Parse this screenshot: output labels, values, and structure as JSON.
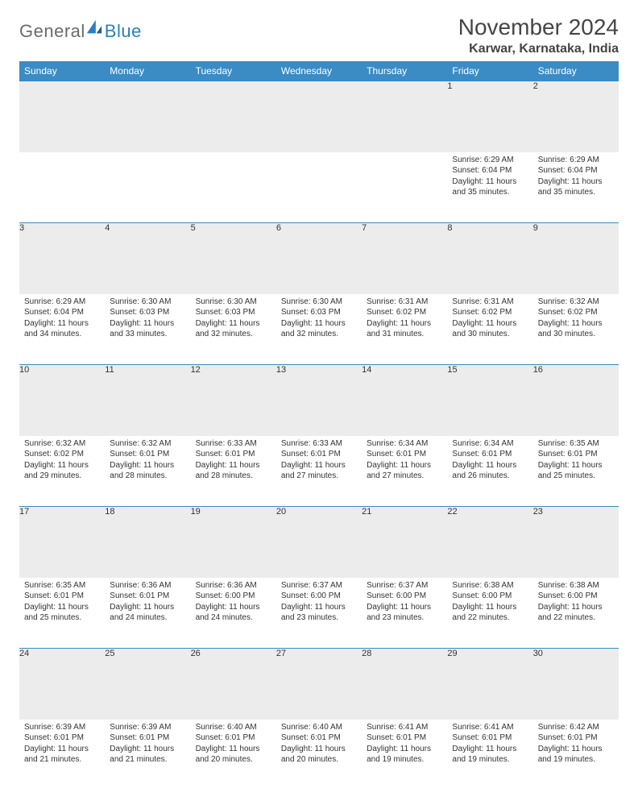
{
  "logo": {
    "general": "General",
    "blue": "Blue"
  },
  "title": "November 2024",
  "location": "Karwar, Karnataka, India",
  "colors": {
    "header_bg": "#3b8bc4",
    "header_fg": "#ffffff",
    "daynum_bg": "#ececec",
    "border": "#3b8bc4",
    "text": "#333333",
    "logo_gray": "#6b6b6b",
    "logo_blue": "#2a7fbf"
  },
  "weekdays": [
    "Sunday",
    "Monday",
    "Tuesday",
    "Wednesday",
    "Thursday",
    "Friday",
    "Saturday"
  ],
  "weeks": [
    [
      null,
      null,
      null,
      null,
      null,
      {
        "d": "1",
        "sr": "Sunrise: 6:29 AM",
        "ss": "Sunset: 6:04 PM",
        "dl1": "Daylight: 11 hours",
        "dl2": "and 35 minutes."
      },
      {
        "d": "2",
        "sr": "Sunrise: 6:29 AM",
        "ss": "Sunset: 6:04 PM",
        "dl1": "Daylight: 11 hours",
        "dl2": "and 35 minutes."
      }
    ],
    [
      {
        "d": "3",
        "sr": "Sunrise: 6:29 AM",
        "ss": "Sunset: 6:04 PM",
        "dl1": "Daylight: 11 hours",
        "dl2": "and 34 minutes."
      },
      {
        "d": "4",
        "sr": "Sunrise: 6:30 AM",
        "ss": "Sunset: 6:03 PM",
        "dl1": "Daylight: 11 hours",
        "dl2": "and 33 minutes."
      },
      {
        "d": "5",
        "sr": "Sunrise: 6:30 AM",
        "ss": "Sunset: 6:03 PM",
        "dl1": "Daylight: 11 hours",
        "dl2": "and 32 minutes."
      },
      {
        "d": "6",
        "sr": "Sunrise: 6:30 AM",
        "ss": "Sunset: 6:03 PM",
        "dl1": "Daylight: 11 hours",
        "dl2": "and 32 minutes."
      },
      {
        "d": "7",
        "sr": "Sunrise: 6:31 AM",
        "ss": "Sunset: 6:02 PM",
        "dl1": "Daylight: 11 hours",
        "dl2": "and 31 minutes."
      },
      {
        "d": "8",
        "sr": "Sunrise: 6:31 AM",
        "ss": "Sunset: 6:02 PM",
        "dl1": "Daylight: 11 hours",
        "dl2": "and 30 minutes."
      },
      {
        "d": "9",
        "sr": "Sunrise: 6:32 AM",
        "ss": "Sunset: 6:02 PM",
        "dl1": "Daylight: 11 hours",
        "dl2": "and 30 minutes."
      }
    ],
    [
      {
        "d": "10",
        "sr": "Sunrise: 6:32 AM",
        "ss": "Sunset: 6:02 PM",
        "dl1": "Daylight: 11 hours",
        "dl2": "and 29 minutes."
      },
      {
        "d": "11",
        "sr": "Sunrise: 6:32 AM",
        "ss": "Sunset: 6:01 PM",
        "dl1": "Daylight: 11 hours",
        "dl2": "and 28 minutes."
      },
      {
        "d": "12",
        "sr": "Sunrise: 6:33 AM",
        "ss": "Sunset: 6:01 PM",
        "dl1": "Daylight: 11 hours",
        "dl2": "and 28 minutes."
      },
      {
        "d": "13",
        "sr": "Sunrise: 6:33 AM",
        "ss": "Sunset: 6:01 PM",
        "dl1": "Daylight: 11 hours",
        "dl2": "and 27 minutes."
      },
      {
        "d": "14",
        "sr": "Sunrise: 6:34 AM",
        "ss": "Sunset: 6:01 PM",
        "dl1": "Daylight: 11 hours",
        "dl2": "and 27 minutes."
      },
      {
        "d": "15",
        "sr": "Sunrise: 6:34 AM",
        "ss": "Sunset: 6:01 PM",
        "dl1": "Daylight: 11 hours",
        "dl2": "and 26 minutes."
      },
      {
        "d": "16",
        "sr": "Sunrise: 6:35 AM",
        "ss": "Sunset: 6:01 PM",
        "dl1": "Daylight: 11 hours",
        "dl2": "and 25 minutes."
      }
    ],
    [
      {
        "d": "17",
        "sr": "Sunrise: 6:35 AM",
        "ss": "Sunset: 6:01 PM",
        "dl1": "Daylight: 11 hours",
        "dl2": "and 25 minutes."
      },
      {
        "d": "18",
        "sr": "Sunrise: 6:36 AM",
        "ss": "Sunset: 6:01 PM",
        "dl1": "Daylight: 11 hours",
        "dl2": "and 24 minutes."
      },
      {
        "d": "19",
        "sr": "Sunrise: 6:36 AM",
        "ss": "Sunset: 6:00 PM",
        "dl1": "Daylight: 11 hours",
        "dl2": "and 24 minutes."
      },
      {
        "d": "20",
        "sr": "Sunrise: 6:37 AM",
        "ss": "Sunset: 6:00 PM",
        "dl1": "Daylight: 11 hours",
        "dl2": "and 23 minutes."
      },
      {
        "d": "21",
        "sr": "Sunrise: 6:37 AM",
        "ss": "Sunset: 6:00 PM",
        "dl1": "Daylight: 11 hours",
        "dl2": "and 23 minutes."
      },
      {
        "d": "22",
        "sr": "Sunrise: 6:38 AM",
        "ss": "Sunset: 6:00 PM",
        "dl1": "Daylight: 11 hours",
        "dl2": "and 22 minutes."
      },
      {
        "d": "23",
        "sr": "Sunrise: 6:38 AM",
        "ss": "Sunset: 6:00 PM",
        "dl1": "Daylight: 11 hours",
        "dl2": "and 22 minutes."
      }
    ],
    [
      {
        "d": "24",
        "sr": "Sunrise: 6:39 AM",
        "ss": "Sunset: 6:01 PM",
        "dl1": "Daylight: 11 hours",
        "dl2": "and 21 minutes."
      },
      {
        "d": "25",
        "sr": "Sunrise: 6:39 AM",
        "ss": "Sunset: 6:01 PM",
        "dl1": "Daylight: 11 hours",
        "dl2": "and 21 minutes."
      },
      {
        "d": "26",
        "sr": "Sunrise: 6:40 AM",
        "ss": "Sunset: 6:01 PM",
        "dl1": "Daylight: 11 hours",
        "dl2": "and 20 minutes."
      },
      {
        "d": "27",
        "sr": "Sunrise: 6:40 AM",
        "ss": "Sunset: 6:01 PM",
        "dl1": "Daylight: 11 hours",
        "dl2": "and 20 minutes."
      },
      {
        "d": "28",
        "sr": "Sunrise: 6:41 AM",
        "ss": "Sunset: 6:01 PM",
        "dl1": "Daylight: 11 hours",
        "dl2": "and 19 minutes."
      },
      {
        "d": "29",
        "sr": "Sunrise: 6:41 AM",
        "ss": "Sunset: 6:01 PM",
        "dl1": "Daylight: 11 hours",
        "dl2": "and 19 minutes."
      },
      {
        "d": "30",
        "sr": "Sunrise: 6:42 AM",
        "ss": "Sunset: 6:01 PM",
        "dl1": "Daylight: 11 hours",
        "dl2": "and 19 minutes."
      }
    ]
  ]
}
